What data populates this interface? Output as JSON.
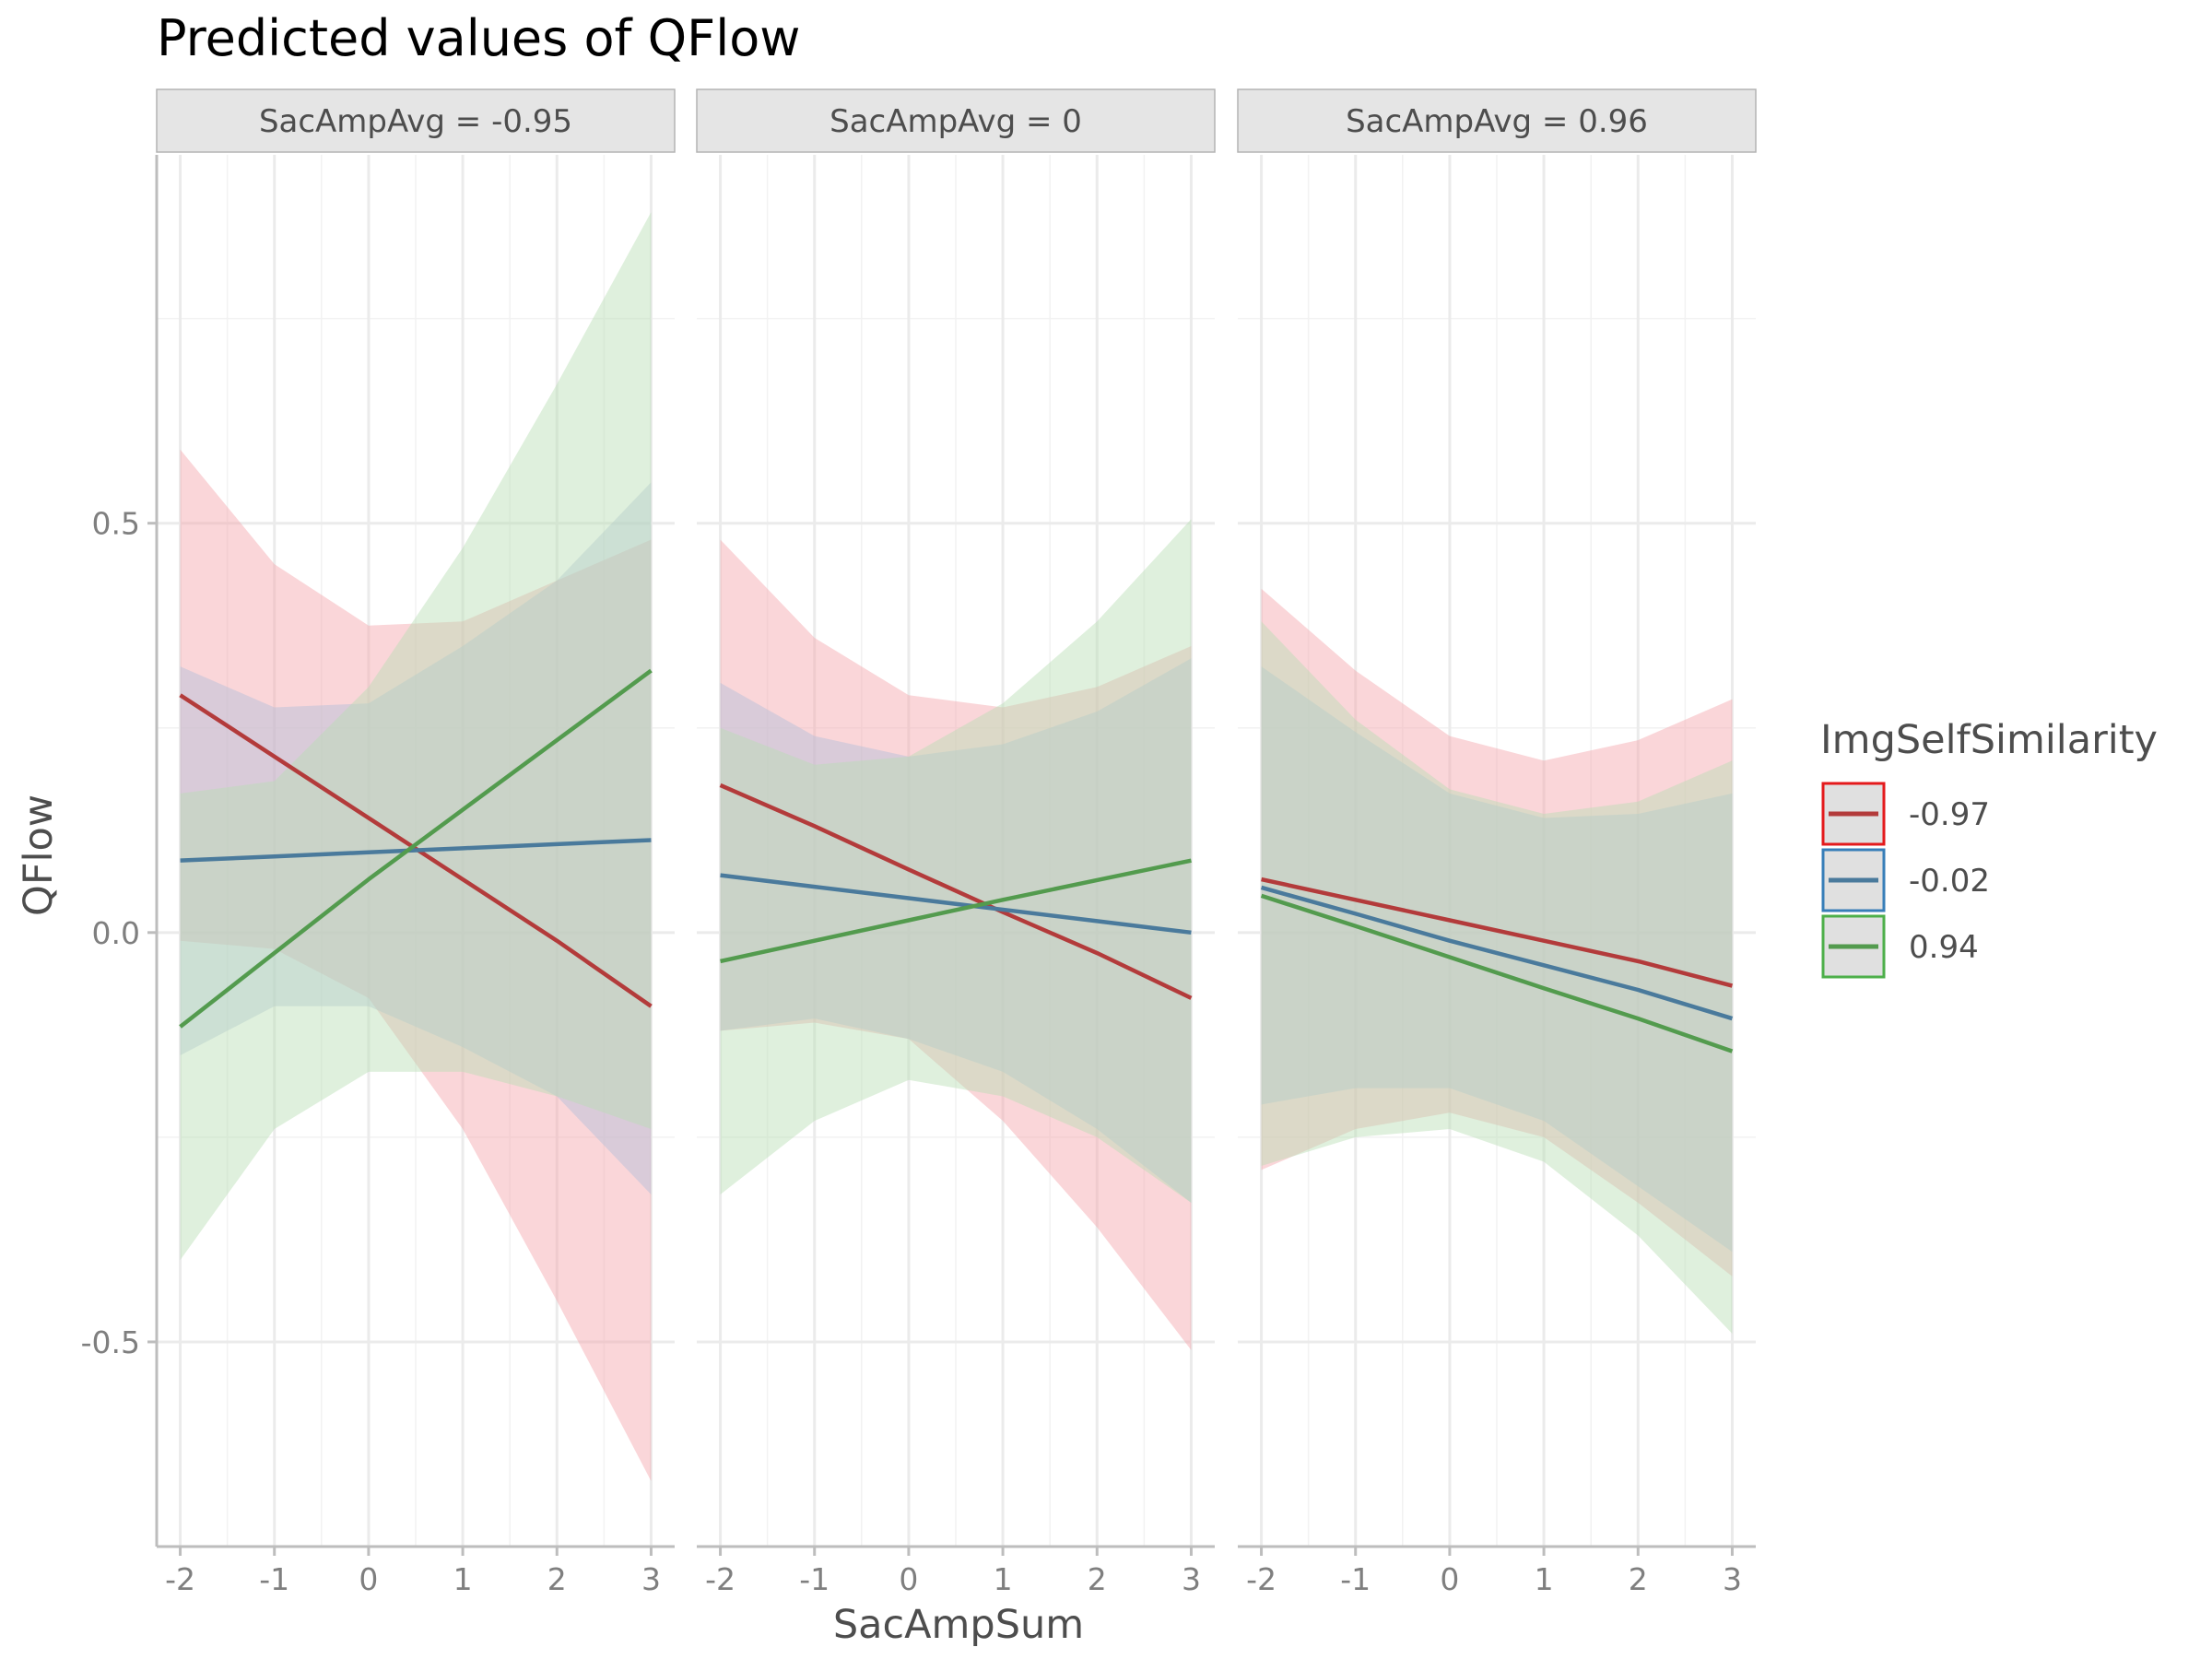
{
  "chart_data": {
    "type": "line",
    "title": "Predicted values of QFlow",
    "xlabel": "SacAmpSum",
    "ylabel": "QFlow",
    "xlim": [
      -2.25,
      3.25
    ],
    "ylim": [
      -0.75,
      0.95
    ],
    "x_ticks": [
      -2,
      -1,
      0,
      1,
      2,
      3
    ],
    "x_tick_labels": [
      "-2",
      "-1",
      "0",
      "1",
      "2",
      "3"
    ],
    "y_ticks": [
      -0.5,
      0.0,
      0.5
    ],
    "y_tick_labels": [
      "-0.5",
      "0.0",
      "0.5"
    ],
    "grid": true,
    "legend": {
      "title": "ImgSelfSimilarity",
      "placement": "right",
      "entries": [
        {
          "label": "-0.97",
          "color": "#e41a1c"
        },
        {
          "label": "-0.02",
          "color": "#377eb8"
        },
        {
          "label": "0.94",
          "color": "#4daf4a"
        }
      ]
    },
    "series_colors": {
      "line": [
        "#b33b3b",
        "#4a7a9c",
        "#539b4e"
      ],
      "band": [
        "#f4a3aa",
        "#b2bfd9",
        "#b7deb3"
      ]
    },
    "x": [
      -2,
      -1,
      0,
      1,
      2,
      3
    ],
    "facets": [
      {
        "label": "SacAmpAvg = -0.95",
        "series": [
          {
            "name": "-0.97",
            "values": [
              0.29,
              0.215,
              0.14,
              0.065,
              -0.01,
              -0.09
            ],
            "lower": [
              -0.01,
              -0.02,
              -0.08,
              -0.24,
              -0.45,
              -0.67
            ],
            "upper": [
              0.59,
              0.45,
              0.375,
              0.38,
              0.43,
              0.48
            ]
          },
          {
            "name": "-0.02",
            "values": [
              0.088,
              0.093,
              0.098,
              0.103,
              0.108,
              0.113
            ],
            "lower": [
              -0.15,
              -0.09,
              -0.09,
              -0.14,
              -0.2,
              -0.32
            ],
            "upper": [
              0.325,
              0.275,
              0.28,
              0.35,
              0.43,
              0.55
            ]
          },
          {
            "name": "0.94",
            "values": [
              -0.115,
              -0.025,
              0.065,
              0.15,
              0.235,
              0.32
            ],
            "lower": [
              -0.4,
              -0.24,
              -0.17,
              -0.17,
              -0.2,
              -0.24
            ],
            "upper": [
              0.17,
              0.185,
              0.3,
              0.47,
              0.67,
              0.88
            ]
          }
        ]
      },
      {
        "label": "SacAmpAvg = 0",
        "series": [
          {
            "name": "-0.97",
            "values": [
              0.18,
              0.13,
              0.077,
              0.025,
              -0.025,
              -0.08
            ],
            "lower": [
              -0.12,
              -0.11,
              -0.13,
              -0.23,
              -0.36,
              -0.51
            ],
            "upper": [
              0.48,
              0.36,
              0.29,
              0.275,
              0.3,
              0.35
            ]
          },
          {
            "name": "-0.02",
            "values": [
              0.07,
              0.056,
              0.042,
              0.028,
              0.014,
              0.0
            ],
            "lower": [
              -0.12,
              -0.105,
              -0.13,
              -0.17,
              -0.24,
              -0.33
            ],
            "upper": [
              0.305,
              0.24,
              0.215,
              0.23,
              0.27,
              0.335
            ]
          },
          {
            "name": "0.94",
            "values": [
              -0.035,
              -0.01,
              0.015,
              0.04,
              0.064,
              0.088
            ],
            "lower": [
              -0.32,
              -0.23,
              -0.18,
              -0.2,
              -0.25,
              -0.33
            ],
            "upper": [
              0.25,
              0.205,
              0.215,
              0.28,
              0.38,
              0.505
            ]
          }
        ]
      },
      {
        "label": "SacAmpAvg = 0.96",
        "series": [
          {
            "name": "-0.97",
            "values": [
              0.065,
              0.04,
              0.015,
              -0.01,
              -0.035,
              -0.065
            ],
            "lower": [
              -0.29,
              -0.24,
              -0.22,
              -0.25,
              -0.33,
              -0.42
            ],
            "upper": [
              0.42,
              0.32,
              0.24,
              0.21,
              0.235,
              0.285
            ]
          },
          {
            "name": "-0.02",
            "values": [
              0.055,
              0.023,
              -0.01,
              -0.04,
              -0.07,
              -0.105
            ],
            "lower": [
              -0.21,
              -0.19,
              -0.19,
              -0.23,
              -0.31,
              -0.39
            ],
            "upper": [
              0.325,
              0.245,
              0.17,
              0.14,
              0.145,
              0.17
            ]
          },
          {
            "name": "0.94",
            "values": [
              0.045,
              0.008,
              -0.03,
              -0.068,
              -0.105,
              -0.145
            ],
            "lower": [
              -0.285,
              -0.25,
              -0.24,
              -0.28,
              -0.37,
              -0.49
            ],
            "upper": [
              0.38,
              0.26,
              0.175,
              0.145,
              0.16,
              0.21
            ]
          }
        ]
      }
    ]
  }
}
